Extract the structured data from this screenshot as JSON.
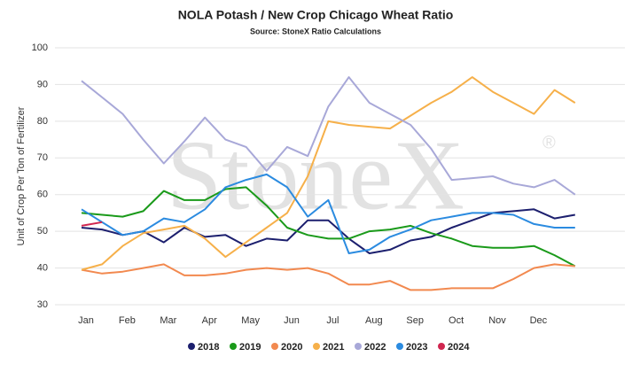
{
  "chart_data": {
    "type": "line",
    "title": "NOLA Potash / New Crop Chicago Wheat Ratio",
    "subtitle": "Source: StoneX Ratio Calculations",
    "watermark": "StoneX",
    "watermark_symbol": "®",
    "y_label": "Unit of Crop Per Ton of Fertilizer",
    "categories": [
      "Jan",
      null,
      "Feb",
      null,
      "Mar",
      null,
      "Apr",
      null,
      "May",
      null,
      "Jun",
      null,
      "Jul",
      null,
      "Aug",
      null,
      "Sep",
      null,
      "Oct",
      null,
      "Nov",
      null,
      "Dec",
      null,
      null
    ],
    "ylim": [
      30,
      100
    ],
    "yticks": [
      30,
      40,
      50,
      60,
      70,
      80,
      90,
      100
    ],
    "grid": true,
    "legend": "bottom",
    "series": [
      {
        "name": "2018",
        "color": "#1c1f6e",
        "values": [
          51,
          50.5,
          49,
          50,
          47,
          51,
          48.5,
          49,
          46,
          48,
          47.5,
          53,
          53,
          48,
          44,
          45,
          47.5,
          48.5,
          51,
          53,
          55,
          55.5,
          56,
          53.5,
          54.5
        ]
      },
      {
        "name": "2019",
        "color": "#1a9a1a",
        "values": [
          55,
          54.5,
          54,
          55.5,
          61,
          58.5,
          58.5,
          61.5,
          62,
          57,
          51,
          49,
          48,
          48,
          50,
          50.5,
          51.5,
          49.5,
          48,
          46,
          45.5,
          45.5,
          46,
          43.5,
          40.5
        ]
      },
      {
        "name": "2020",
        "color": "#f2894f",
        "values": [
          39.5,
          38.5,
          39,
          40,
          41,
          38,
          38,
          38.5,
          39.5,
          40,
          39.5,
          40,
          38.5,
          35.5,
          35.5,
          36.5,
          34,
          34,
          34.5,
          34.5,
          34.5,
          37,
          40,
          41,
          40.5
        ]
      },
      {
        "name": "2021",
        "color": "#f6b04a",
        "values": [
          39.5,
          41,
          46,
          49.5,
          50.5,
          51.5,
          48,
          43,
          47,
          51,
          55,
          65,
          80,
          79,
          78.5,
          78,
          81.5,
          85,
          88,
          92,
          88,
          85,
          82,
          88.5,
          85
        ]
      },
      {
        "name": "2022",
        "color": "#a8a8d8",
        "values": [
          91,
          86.5,
          82,
          75,
          68.5,
          74.5,
          81,
          75,
          73,
          66.5,
          73,
          70.5,
          84,
          92,
          85,
          82,
          79,
          72.5,
          64,
          64.5,
          65,
          63,
          62,
          64,
          60
        ]
      },
      {
        "name": "2023",
        "color": "#2b8be0",
        "values": [
          56,
          52.5,
          49,
          50,
          53.5,
          52.5,
          56,
          62,
          64,
          65.5,
          62,
          54,
          58.5,
          44,
          45,
          48.5,
          50.5,
          53,
          54,
          55,
          55,
          54.5,
          52,
          51,
          51
        ]
      },
      {
        "name": "2024",
        "color": "#d0264f",
        "values": [
          51.5,
          52.5,
          null,
          null,
          null,
          null,
          null,
          null,
          null,
          null,
          null,
          null,
          null,
          null,
          null,
          null,
          null,
          null,
          null,
          null,
          null,
          null,
          null,
          null,
          null
        ]
      }
    ]
  }
}
